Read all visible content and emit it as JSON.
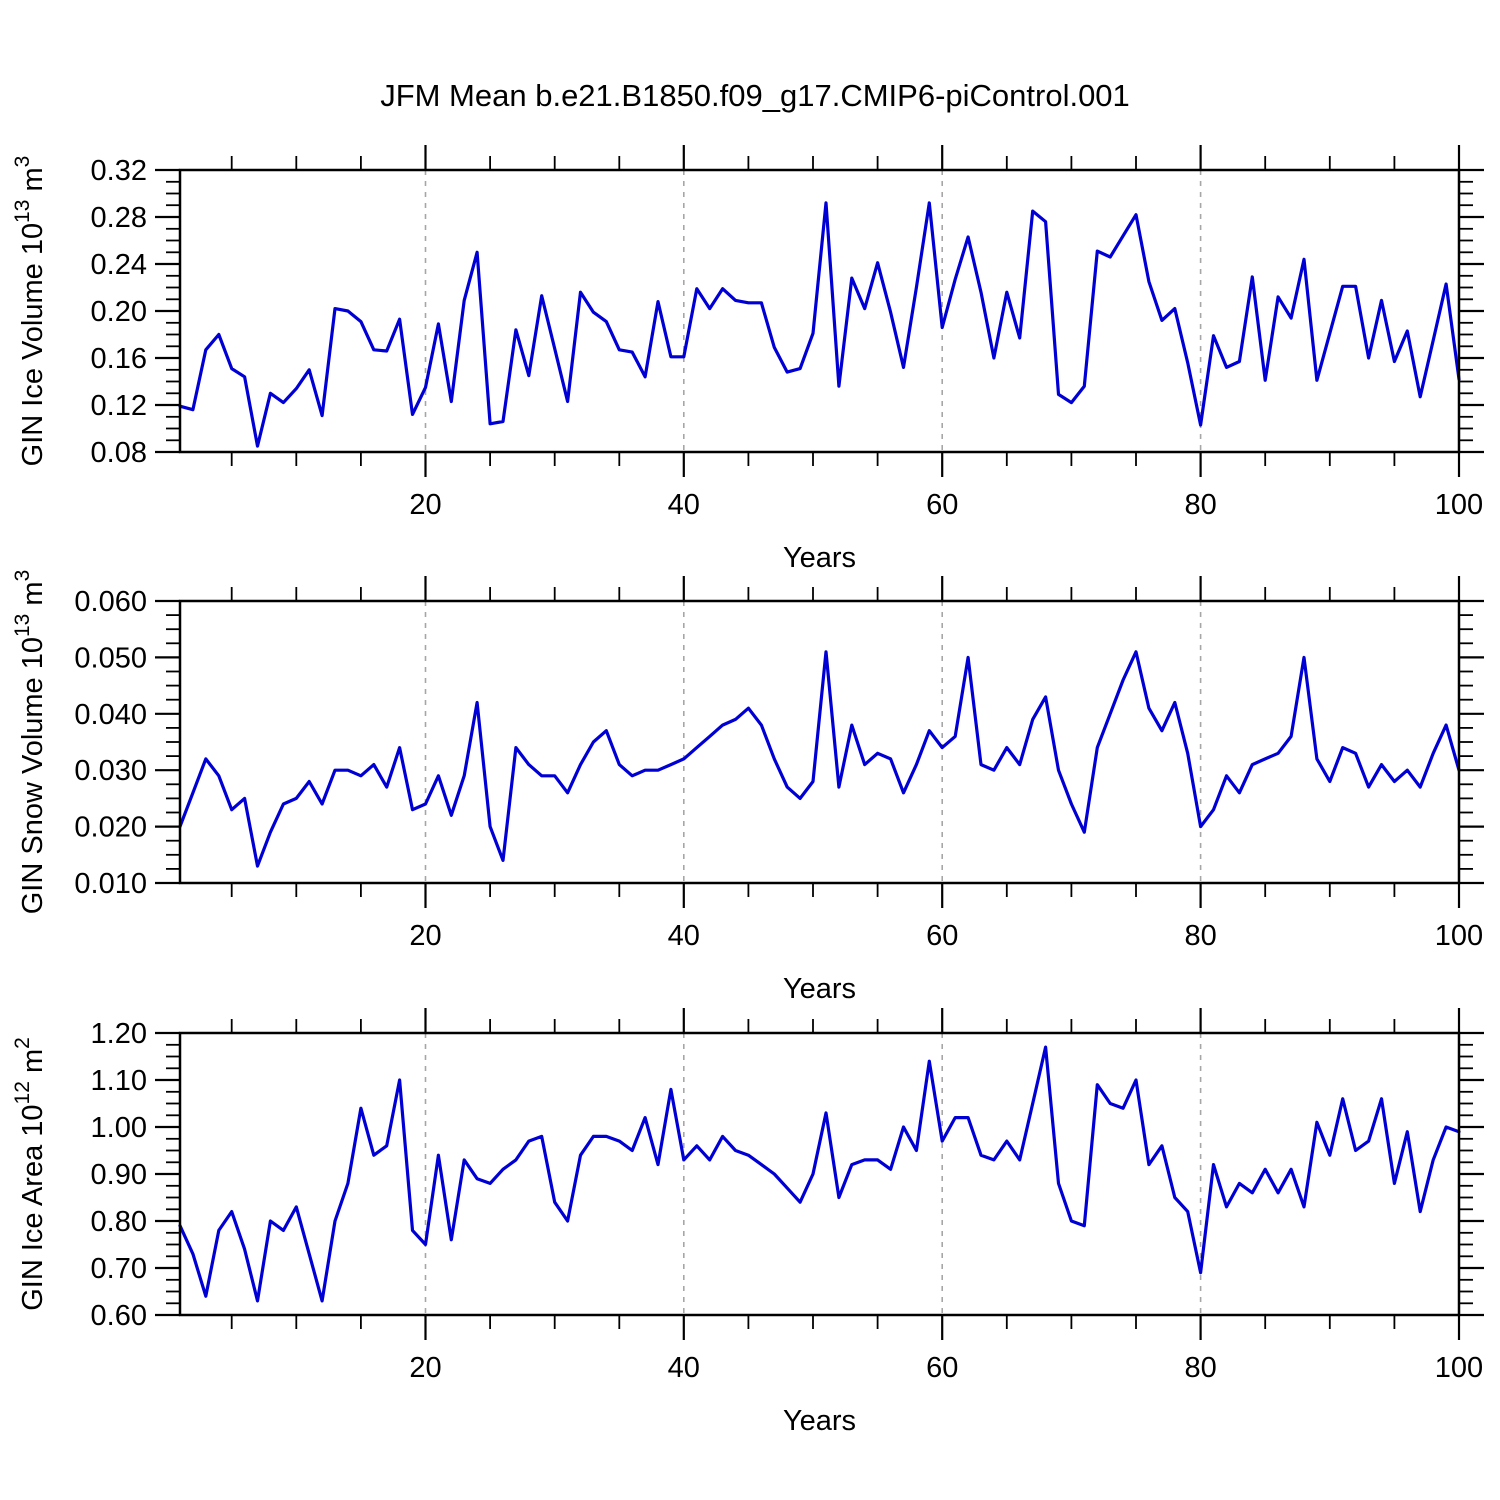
{
  "title": "JFM Mean b.e21.B1850.f09_g17.CMIP6-piControl.001",
  "colors": {
    "line": "#0000d5",
    "grid": "#a6a6a6",
    "axis": "#000000"
  },
  "chart_data": [
    {
      "id": "gin-ice-volume",
      "type": "line",
      "ylabel": "GIN Ice Volume 10^13 m^3",
      "ylabel_parts": [
        "GIN Ice Volume 10",
        "13",
        " m",
        "3"
      ],
      "xlabel": "Years",
      "xlim": [
        1,
        100
      ],
      "ylim": [
        0.08,
        0.32
      ],
      "yticks": [
        "0.08",
        "0.12",
        "0.16",
        "0.20",
        "0.24",
        "0.28",
        "0.32"
      ],
      "y_minor_divisions": 4,
      "xticks": [
        20,
        40,
        60,
        80,
        100
      ],
      "xtick_minor_step": 5,
      "grid_x": [
        20,
        40,
        60,
        80
      ],
      "grid_on": true,
      "values": [
        0.119,
        0.116,
        0.167,
        0.18,
        0.151,
        0.144,
        0.085,
        0.13,
        0.122,
        0.134,
        0.15,
        0.111,
        0.202,
        0.2,
        0.191,
        0.167,
        0.166,
        0.193,
        0.112,
        0.135,
        0.189,
        0.123,
        0.209,
        0.25,
        0.104,
        0.106,
        0.184,
        0.145,
        0.213,
        0.168,
        0.123,
        0.216,
        0.199,
        0.191,
        0.167,
        0.165,
        0.144,
        0.208,
        0.161,
        0.161,
        0.219,
        0.202,
        0.219,
        0.209,
        0.207,
        0.207,
        0.169,
        0.148,
        0.151,
        0.181,
        0.292,
        0.136,
        0.228,
        0.202,
        0.241,
        0.199,
        0.152,
        0.22,
        0.292,
        0.186,
        0.227,
        0.263,
        0.216,
        0.16,
        0.216,
        0.177,
        0.285,
        0.276,
        0.129,
        0.122,
        0.136,
        0.251,
        0.246,
        0.264,
        0.282,
        0.225,
        0.192,
        0.202,
        0.156,
        0.103,
        0.179,
        0.152,
        0.157,
        0.229,
        0.141,
        0.212,
        0.194,
        0.244,
        0.141,
        0.181,
        0.221,
        0.221,
        0.16,
        0.209,
        0.157,
        0.183,
        0.127,
        0.175,
        0.223,
        0.142
      ]
    },
    {
      "id": "gin-snow-volume",
      "type": "line",
      "ylabel": "GIN Snow Volume 10^13 m^3",
      "ylabel_parts": [
        "GIN Snow Volume 10",
        "13",
        " m",
        "3"
      ],
      "xlabel": "Years",
      "xlim": [
        1,
        100
      ],
      "ylim": [
        0.01,
        0.06
      ],
      "yticks": [
        "0.010",
        "0.020",
        "0.030",
        "0.040",
        "0.050",
        "0.060"
      ],
      "y_minor_divisions": 4,
      "xticks": [
        20,
        40,
        60,
        80,
        100
      ],
      "xtick_minor_step": 5,
      "grid_x": [
        20,
        40,
        60,
        80
      ],
      "grid_on": true,
      "values": [
        0.02,
        0.026,
        0.032,
        0.029,
        0.023,
        0.025,
        0.013,
        0.019,
        0.024,
        0.025,
        0.028,
        0.024,
        0.03,
        0.03,
        0.029,
        0.031,
        0.027,
        0.034,
        0.023,
        0.024,
        0.029,
        0.022,
        0.029,
        0.042,
        0.02,
        0.014,
        0.034,
        0.031,
        0.029,
        0.029,
        0.026,
        0.031,
        0.035,
        0.037,
        0.031,
        0.029,
        0.03,
        0.03,
        0.031,
        0.032,
        0.034,
        0.036,
        0.038,
        0.039,
        0.041,
        0.038,
        0.032,
        0.027,
        0.025,
        0.028,
        0.051,
        0.027,
        0.038,
        0.031,
        0.033,
        0.032,
        0.026,
        0.031,
        0.037,
        0.034,
        0.036,
        0.05,
        0.031,
        0.03,
        0.034,
        0.031,
        0.039,
        0.043,
        0.03,
        0.024,
        0.019,
        0.034,
        0.04,
        0.046,
        0.051,
        0.041,
        0.037,
        0.042,
        0.033,
        0.02,
        0.023,
        0.029,
        0.026,
        0.031,
        0.032,
        0.033,
        0.036,
        0.05,
        0.032,
        0.028,
        0.034,
        0.033,
        0.027,
        0.031,
        0.028,
        0.03,
        0.027,
        0.033,
        0.038,
        0.03
      ]
    },
    {
      "id": "gin-ice-area",
      "type": "line",
      "ylabel": "GIN Ice Area 10^12 m^2",
      "ylabel_parts": [
        "GIN Ice Area 10",
        "12",
        " m",
        "2"
      ],
      "xlabel": "Years",
      "xlim": [
        1,
        100
      ],
      "ylim": [
        0.6,
        1.2
      ],
      "yticks": [
        "0.60",
        "0.70",
        "0.80",
        "0.90",
        "1.00",
        "1.10",
        "1.20"
      ],
      "y_minor_divisions": 4,
      "xticks": [
        20,
        40,
        60,
        80,
        100
      ],
      "xtick_minor_step": 5,
      "grid_x": [
        20,
        40,
        60,
        80
      ],
      "grid_on": true,
      "values": [
        0.79,
        0.73,
        0.64,
        0.78,
        0.82,
        0.74,
        0.63,
        0.8,
        0.78,
        0.83,
        0.73,
        0.63,
        0.8,
        0.88,
        1.04,
        0.94,
        0.96,
        1.1,
        0.78,
        0.75,
        0.94,
        0.76,
        0.93,
        0.89,
        0.88,
        0.91,
        0.93,
        0.97,
        0.98,
        0.84,
        0.8,
        0.94,
        0.98,
        0.98,
        0.97,
        0.95,
        1.02,
        0.92,
        1.08,
        0.93,
        0.96,
        0.93,
        0.98,
        0.95,
        0.94,
        0.92,
        0.9,
        0.87,
        0.84,
        0.9,
        1.03,
        0.85,
        0.92,
        0.93,
        0.93,
        0.91,
        1.0,
        0.95,
        1.14,
        0.97,
        1.02,
        1.02,
        0.94,
        0.93,
        0.97,
        0.93,
        1.05,
        1.17,
        0.88,
        0.8,
        0.79,
        1.09,
        1.05,
        1.04,
        1.1,
        0.92,
        0.96,
        0.85,
        0.82,
        0.69,
        0.92,
        0.83,
        0.88,
        0.86,
        0.91,
        0.86,
        0.91,
        0.83,
        1.01,
        0.94,
        1.06,
        0.95,
        0.97,
        1.06,
        0.88,
        0.99,
        0.82,
        0.93,
        1.0,
        0.99
      ]
    }
  ]
}
